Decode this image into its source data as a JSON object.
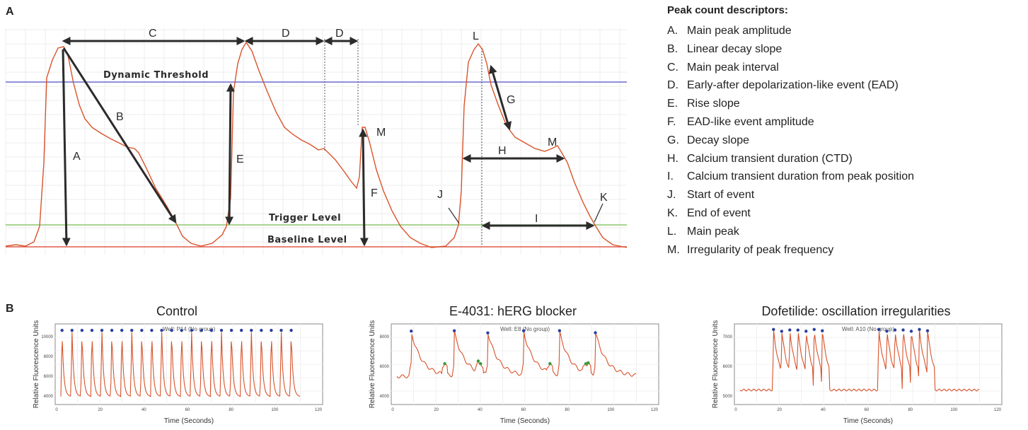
{
  "panel_a_label": "A",
  "panel_b_label": "B",
  "diagram": {
    "lines": {
      "dynamic_threshold": "Dynamic Threshold",
      "trigger_level": "Trigger Level",
      "baseline_level": "Baseline Level"
    },
    "markers": [
      "A",
      "B",
      "C",
      "D",
      "D",
      "E",
      "F",
      "G",
      "H",
      "I",
      "J",
      "K",
      "L",
      "M",
      "M"
    ]
  },
  "descriptors": {
    "title": "Peak count descriptors:",
    "items": [
      {
        "key": "A.",
        "label": "Main peak amplitude"
      },
      {
        "key": "B.",
        "label": "Linear decay slope"
      },
      {
        "key": "C.",
        "label": "Main peak interval"
      },
      {
        "key": "D.",
        "label": "Early-after depolarization-like event (EAD)"
      },
      {
        "key": "E.",
        "label": "Rise slope"
      },
      {
        "key": "F.",
        "label": "EAD-like event amplitude"
      },
      {
        "key": "G.",
        "label": "Decay slope"
      },
      {
        "key": "H.",
        "label": "Calcium transient duration (CTD)"
      },
      {
        "key": "I.",
        "label": "Calcium transient duration from peak position"
      },
      {
        "key": "J.",
        "label": "Start of event"
      },
      {
        "key": "K.",
        "label": "End of event"
      },
      {
        "key": "L.",
        "label": "Main peak"
      },
      {
        "key": "M.",
        "label": "Irregularity of peak frequency"
      }
    ]
  },
  "panels_b": [
    {
      "title": "Control",
      "well": "Well: P14 (No group)",
      "ylabel": "Relative Fluorescence Units",
      "xlabel": "Time (Seconds)",
      "yticks": [
        "10000",
        "8000",
        "6000",
        "4000"
      ],
      "xticks": [
        "0",
        "20",
        "40",
        "60",
        "80",
        "100",
        "120"
      ]
    },
    {
      "title": "E-4031: hERG blocker",
      "well": "Well: E8 (No group)",
      "ylabel": "Relative Fluorescence Units",
      "xlabel": "Time (Seconds)",
      "yticks": [
        "8000",
        "6000",
        "4000"
      ],
      "xticks": [
        "0",
        "20",
        "40",
        "60",
        "80",
        "100",
        "120"
      ]
    },
    {
      "title": "Dofetilide: oscillation irregularities",
      "well": "Well: A10 (No group)",
      "ylabel": "Relative Fluorescence Units",
      "xlabel": "Time (Seconds)",
      "yticks": [
        "7000",
        "6000",
        "5000"
      ],
      "xticks": [
        "0",
        "20",
        "40",
        "60",
        "80",
        "100",
        "120"
      ]
    }
  ],
  "colors": {
    "trace": "#d9532b",
    "dynamic_threshold": "#6b6bcf",
    "trigger_level": "#8cc56a",
    "baseline_level": "#e05a4a",
    "arrow": "#2b2b2b",
    "peak_dot": "#2b3fa0",
    "ead_dot": "#3a9a3a"
  }
}
